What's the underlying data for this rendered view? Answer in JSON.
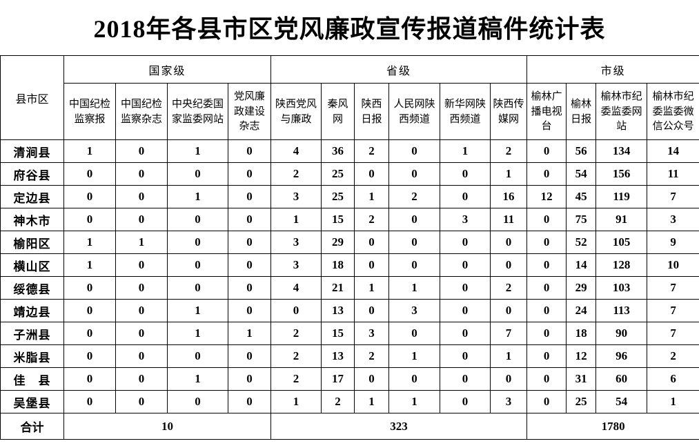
{
  "title": "2018年各县市区党风廉政宣传报道稿件统计表",
  "colors": {
    "background": "#ffffff",
    "text": "#000000",
    "border": "#000000"
  },
  "table": {
    "corner_header": "县市区",
    "groups": [
      {
        "key": "national",
        "label": "国家级",
        "columns": [
          "中国纪检监察报",
          "中国纪检监察杂志",
          "中央纪委国家监委网站",
          "党风廉政建设杂志"
        ]
      },
      {
        "key": "provincial",
        "label": "省级",
        "columns": [
          "陕西党风与廉政",
          "秦风网",
          "陕西日报",
          "人民网陕西频道",
          "新华网陕西频道",
          "陕西传媒网"
        ]
      },
      {
        "key": "municipal",
        "label": "市级",
        "columns": [
          "榆林广播电视台",
          "榆林日报",
          "榆林市纪委监委网站",
          "榆林市纪委监委微信公众号"
        ]
      }
    ],
    "rows": [
      {
        "name": "清涧县",
        "values": [
          1,
          0,
          1,
          0,
          4,
          36,
          2,
          0,
          1,
          2,
          0,
          56,
          134,
          14
        ]
      },
      {
        "name": "府谷县",
        "values": [
          0,
          0,
          0,
          0,
          2,
          25,
          0,
          0,
          0,
          1,
          0,
          54,
          156,
          11
        ]
      },
      {
        "name": "定边县",
        "values": [
          0,
          0,
          1,
          0,
          3,
          25,
          1,
          2,
          0,
          16,
          12,
          45,
          119,
          7
        ]
      },
      {
        "name": "神木市",
        "values": [
          0,
          0,
          0,
          0,
          1,
          15,
          2,
          0,
          3,
          11,
          0,
          75,
          91,
          3
        ]
      },
      {
        "name": "榆阳区",
        "values": [
          1,
          1,
          0,
          0,
          3,
          29,
          0,
          0,
          0,
          0,
          0,
          52,
          105,
          9
        ]
      },
      {
        "name": "横山区",
        "values": [
          1,
          0,
          0,
          0,
          3,
          18,
          0,
          0,
          0,
          0,
          0,
          14,
          128,
          10
        ]
      },
      {
        "name": "绥德县",
        "values": [
          0,
          0,
          0,
          0,
          4,
          21,
          1,
          1,
          0,
          2,
          0,
          29,
          103,
          7
        ]
      },
      {
        "name": "靖边县",
        "values": [
          0,
          0,
          1,
          0,
          0,
          13,
          0,
          3,
          0,
          0,
          0,
          24,
          113,
          7
        ]
      },
      {
        "name": "子洲县",
        "values": [
          0,
          0,
          1,
          1,
          2,
          15,
          3,
          0,
          0,
          7,
          0,
          18,
          90,
          7
        ]
      },
      {
        "name": "米脂县",
        "values": [
          0,
          0,
          0,
          0,
          2,
          13,
          2,
          1,
          0,
          1,
          0,
          12,
          96,
          2
        ]
      },
      {
        "name": "佳　县",
        "values": [
          0,
          0,
          1,
          0,
          2,
          17,
          0,
          0,
          0,
          0,
          0,
          31,
          60,
          6
        ]
      },
      {
        "name": "吴堡县",
        "values": [
          0,
          0,
          0,
          0,
          1,
          2,
          1,
          1,
          0,
          3,
          0,
          25,
          54,
          1
        ]
      }
    ],
    "totals": {
      "label": "合计",
      "values": [
        10,
        323,
        1780
      ]
    }
  }
}
